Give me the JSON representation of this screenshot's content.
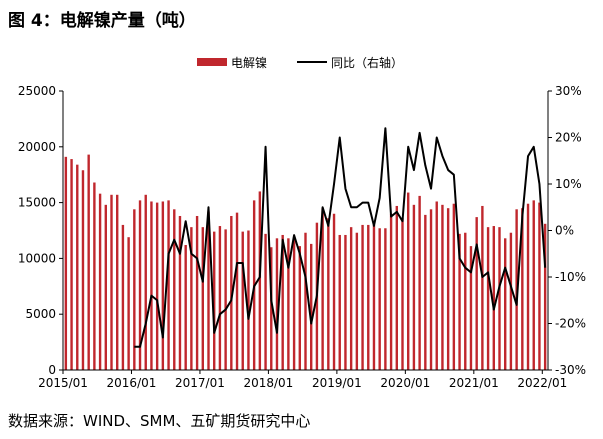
{
  "figure": {
    "title": "图 4：电解镍产量（吨）",
    "source": "数据来源：WIND、SMM、五矿期货研究中心"
  },
  "colors": {
    "bar": "#c0272d",
    "line": "#000000",
    "axis": "#000000",
    "text": "#000000"
  },
  "chart_data": {
    "type": "bar",
    "title": "图 4：电解镍产量（吨）",
    "xlabel": "",
    "ylabel": "",
    "ylim": [
      0,
      25000
    ],
    "y2lim": [
      -0.3,
      0.3
    ],
    "yticks": [
      0,
      5000,
      10000,
      15000,
      20000,
      25000
    ],
    "yticklabels": [
      "0",
      "5000",
      "10000",
      "15000",
      "20000",
      "25000"
    ],
    "y2ticks": [
      -0.3,
      -0.2,
      -0.1,
      0.0,
      0.1,
      0.2,
      0.3
    ],
    "y2ticklabels": [
      "-30%",
      "-20%",
      "-10%",
      "0%",
      "10%",
      "20%",
      "30%"
    ],
    "xticklabels": [
      "2015/01",
      "2016/01",
      "2017/01",
      "2018/01",
      "2019/01",
      "2020/01",
      "2021/01",
      "2022/01"
    ],
    "legend": {
      "position": "top-center",
      "entries": [
        "电解镍",
        "同比（右轴）"
      ]
    },
    "grid": false,
    "months": [
      "2015/01",
      "2015/02",
      "2015/03",
      "2015/04",
      "2015/05",
      "2015/06",
      "2015/07",
      "2015/08",
      "2015/09",
      "2015/10",
      "2015/11",
      "2015/12",
      "2016/01",
      "2016/02",
      "2016/03",
      "2016/04",
      "2016/05",
      "2016/06",
      "2016/07",
      "2016/08",
      "2016/09",
      "2016/10",
      "2016/11",
      "2016/12",
      "2017/01",
      "2017/02",
      "2017/03",
      "2017/04",
      "2017/05",
      "2017/06",
      "2017/07",
      "2017/08",
      "2017/09",
      "2017/10",
      "2017/11",
      "2017/12",
      "2018/01",
      "2018/02",
      "2018/03",
      "2018/04",
      "2018/05",
      "2018/06",
      "2018/07",
      "2018/08",
      "2018/09",
      "2018/10",
      "2018/11",
      "2018/12",
      "2019/01",
      "2019/02",
      "2019/03",
      "2019/04",
      "2019/05",
      "2019/06",
      "2019/07",
      "2019/08",
      "2019/09",
      "2019/10",
      "2019/11",
      "2019/12",
      "2020/01",
      "2020/02",
      "2020/03",
      "2020/04",
      "2020/05",
      "2020/06",
      "2020/07",
      "2020/08",
      "2020/09",
      "2020/10",
      "2020/11",
      "2020/12",
      "2021/01",
      "2021/02",
      "2021/03",
      "2021/04",
      "2021/05",
      "2021/06",
      "2021/07",
      "2021/08",
      "2021/09",
      "2021/10",
      "2021/11",
      "2021/12",
      "2022/01"
    ],
    "series": [
      {
        "name": "电解镍",
        "type": "bar",
        "axis": "left",
        "values": [
          19100,
          18900,
          18400,
          17900,
          19300,
          16800,
          15800,
          14800,
          15700,
          15700,
          13000,
          11900,
          14400,
          15200,
          15700,
          15100,
          15000,
          15100,
          15200,
          14400,
          13800,
          11200,
          12800,
          13800,
          12800,
          14200,
          12400,
          12900,
          12600,
          13800,
          14100,
          12400,
          12500,
          15200,
          16000,
          12200,
          11000,
          11800,
          12100,
          11800,
          11900,
          11100,
          12300,
          11300,
          13200,
          14500,
          13600,
          14000,
          12100,
          12100,
          12800,
          12300,
          13000,
          13000,
          13000,
          12700,
          12700,
          14000,
          14700,
          13600,
          15900,
          14800,
          15600,
          13900,
          14400,
          15100,
          14800,
          14500,
          14900,
          12200,
          12300,
          11100,
          13700,
          14700,
          12800,
          12900,
          12800,
          11800,
          12300,
          14400,
          14500,
          14900,
          15200,
          15000,
          13100
        ]
      },
      {
        "name": "同比（右轴）",
        "type": "line",
        "axis": "right",
        "values": [
          null,
          null,
          null,
          null,
          null,
          null,
          null,
          null,
          null,
          null,
          null,
          null,
          -0.25,
          -0.25,
          -0.2,
          -0.14,
          -0.15,
          -0.23,
          -0.05,
          -0.02,
          -0.05,
          0.02,
          -0.05,
          -0.06,
          -0.11,
          0.05,
          -0.22,
          -0.18,
          -0.17,
          -0.15,
          -0.07,
          -0.07,
          -0.19,
          -0.12,
          -0.1,
          0.18,
          -0.15,
          -0.22,
          -0.02,
          -0.08,
          -0.01,
          -0.05,
          -0.1,
          -0.2,
          -0.14,
          0.05,
          0.01,
          0.1,
          0.2,
          0.09,
          0.05,
          0.05,
          0.06,
          0.06,
          0.01,
          0.07,
          0.22,
          0.03,
          0.04,
          0.02,
          0.18,
          0.13,
          0.21,
          0.14,
          0.09,
          0.2,
          0.16,
          0.13,
          0.12,
          -0.06,
          -0.08,
          -0.09,
          -0.03,
          -0.1,
          -0.09,
          -0.17,
          -0.12,
          -0.08,
          -0.12,
          -0.16,
          0.03,
          0.16,
          0.18,
          0.1,
          -0.08
        ]
      }
    ]
  }
}
